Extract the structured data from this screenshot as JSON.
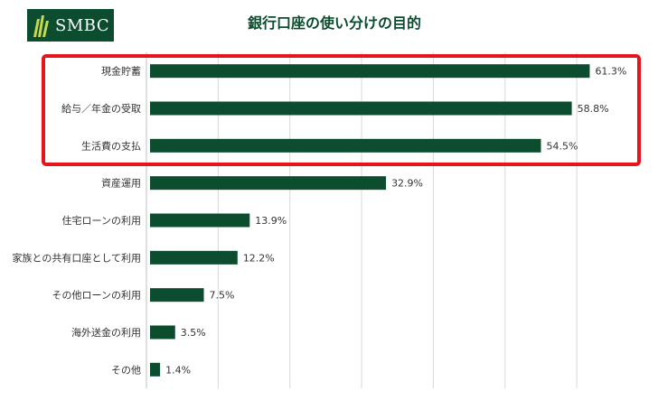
{
  "header": {
    "logo_text": "SMBC",
    "title": "銀行口座の使い分けの目的"
  },
  "colors": {
    "bar": "#0b4d2e",
    "brand": "#0b4d2e",
    "highlight_box": "#e8141c",
    "grid": "#d9d9d9"
  },
  "chart_data": {
    "type": "bar",
    "orientation": "horizontal",
    "title": "銀行口座の使い分けの目的",
    "categories": [
      "現金貯蓄",
      "給与／年金の受取",
      "生活費の支払",
      "資産運用",
      "住宅ローンの利用",
      "家族との共有口座として利用",
      "その他ローンの利用",
      "海外送金の利用",
      "その他"
    ],
    "values": [
      61.3,
      58.8,
      54.5,
      32.9,
      13.9,
      12.2,
      7.5,
      3.5,
      1.4
    ],
    "value_labels": [
      "61.3%",
      "58.8%",
      "54.5%",
      "32.9%",
      "13.9%",
      "12.2%",
      "7.5%",
      "3.5%",
      "1.4%"
    ],
    "xlim": [
      0,
      62
    ],
    "grid": true,
    "highlighted_categories": [
      "現金貯蓄",
      "給与／年金の受取",
      "生活費の支払"
    ]
  }
}
